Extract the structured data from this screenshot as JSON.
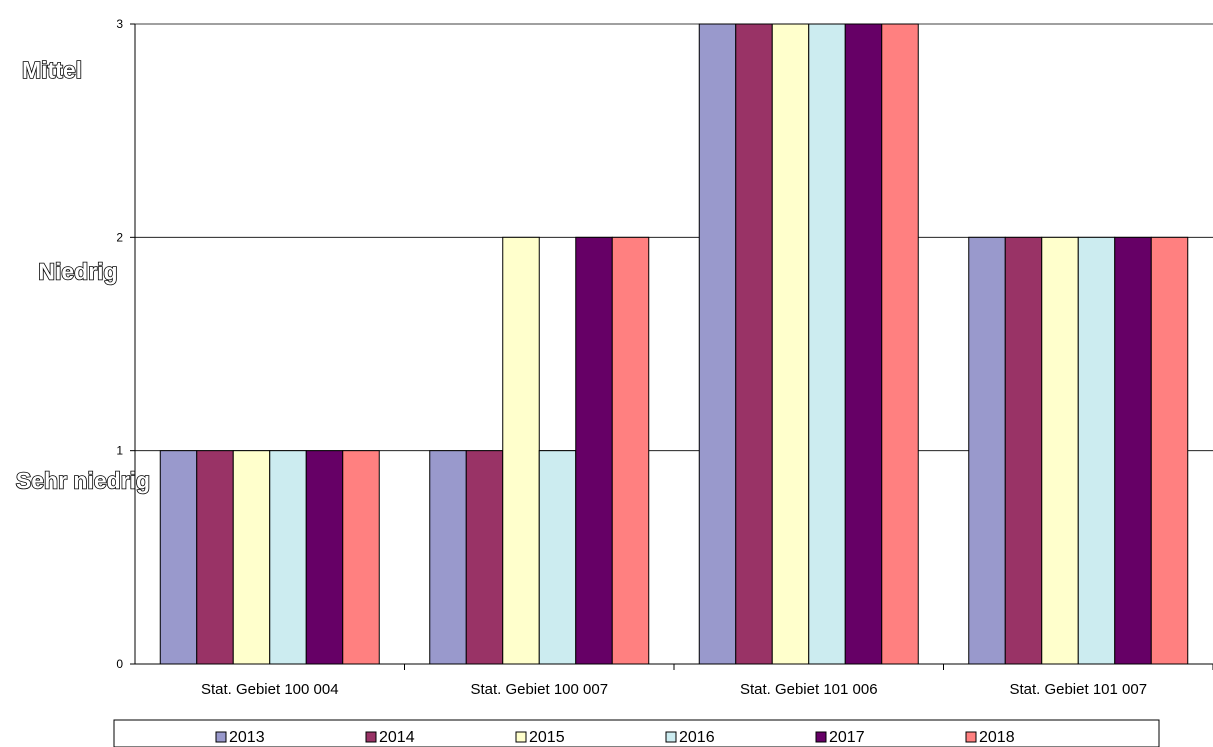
{
  "chart_data": {
    "type": "bar",
    "categories": [
      "Stat. Gebiet 100 004",
      "Stat. Gebiet 100 007",
      "Stat. Gebiet 101 006",
      "Stat. Gebiet 101 007"
    ],
    "series": [
      {
        "name": "2013",
        "color": "#9999cc",
        "values": [
          1,
          1,
          3,
          2
        ]
      },
      {
        "name": "2014",
        "color": "#993366",
        "values": [
          1,
          1,
          3,
          2
        ]
      },
      {
        "name": "2015",
        "color": "#ffffcc",
        "values": [
          1,
          2,
          3,
          2
        ]
      },
      {
        "name": "2016",
        "color": "#ccecf0",
        "values": [
          1,
          1,
          3,
          2
        ]
      },
      {
        "name": "2017",
        "color": "#660066",
        "values": [
          1,
          2,
          3,
          2
        ]
      },
      {
        "name": "2018",
        "color": "#ff8080",
        "values": [
          1,
          2,
          3,
          2
        ]
      }
    ],
    "ylim": [
      0,
      3
    ],
    "yticks": [
      "0",
      "1",
      "2",
      "3"
    ],
    "level_labels": [
      "Sehr niedrig",
      "Niedrig",
      "Mittel"
    ],
    "grid": true,
    "legend": "bottom"
  }
}
